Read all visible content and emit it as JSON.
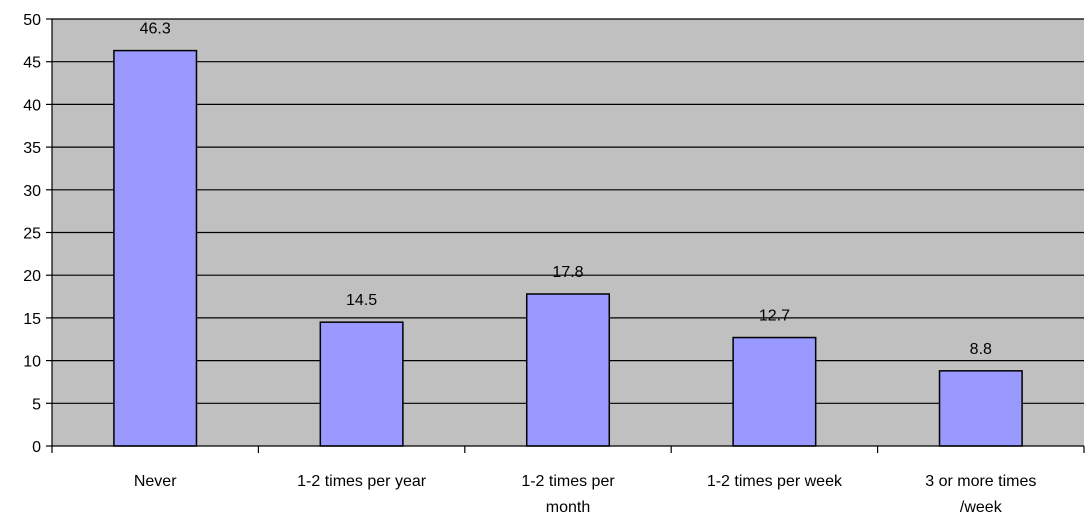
{
  "chart_data": {
    "type": "bar",
    "categories": [
      [
        "Never"
      ],
      [
        "1-2 times per year"
      ],
      [
        "1-2 times per",
        "month"
      ],
      [
        "1-2 times per week"
      ],
      [
        "3 or more times",
        "/week"
      ]
    ],
    "values": [
      46.3,
      14.5,
      17.8,
      12.7,
      8.8
    ],
    "value_labels": [
      "46.3",
      "14.5",
      "17.8",
      "12.7",
      "8.8"
    ],
    "ylim": [
      0,
      50
    ],
    "yticks": [
      0,
      5,
      10,
      15,
      20,
      25,
      30,
      35,
      40,
      45,
      50
    ],
    "grid": true,
    "legend": false,
    "colors": {
      "plot_background": "#c0c0c0",
      "bar_fill": "#9999ff",
      "bar_stroke": "#000000",
      "gridline": "#000000"
    }
  }
}
